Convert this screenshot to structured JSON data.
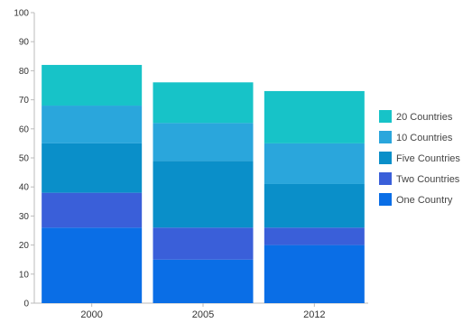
{
  "chart_data": {
    "type": "bar",
    "stacked": true,
    "title": "",
    "xlabel": "",
    "ylabel": "",
    "categories": [
      "2000",
      "2005",
      "2012"
    ],
    "ylim": [
      0,
      100
    ],
    "yticks": [
      0,
      10,
      20,
      30,
      40,
      50,
      60,
      70,
      80,
      90,
      100
    ],
    "grid": false,
    "legend_position": "right",
    "series": [
      {
        "name": "One Country",
        "color": "#0a6ee6",
        "values": [
          26,
          15,
          20
        ]
      },
      {
        "name": "Two Countries",
        "color": "#3a5fd9",
        "values": [
          12,
          11,
          6
        ]
      },
      {
        "name": "Five Countries",
        "color": "#0a8fc9",
        "values": [
          17,
          23,
          15
        ]
      },
      {
        "name": "10 Countries",
        "color": "#2aa6dc",
        "values": [
          13,
          13,
          14
        ]
      },
      {
        "name": "20 Countries",
        "color": "#17c3c8",
        "values": [
          14,
          14,
          18
        ]
      }
    ]
  }
}
